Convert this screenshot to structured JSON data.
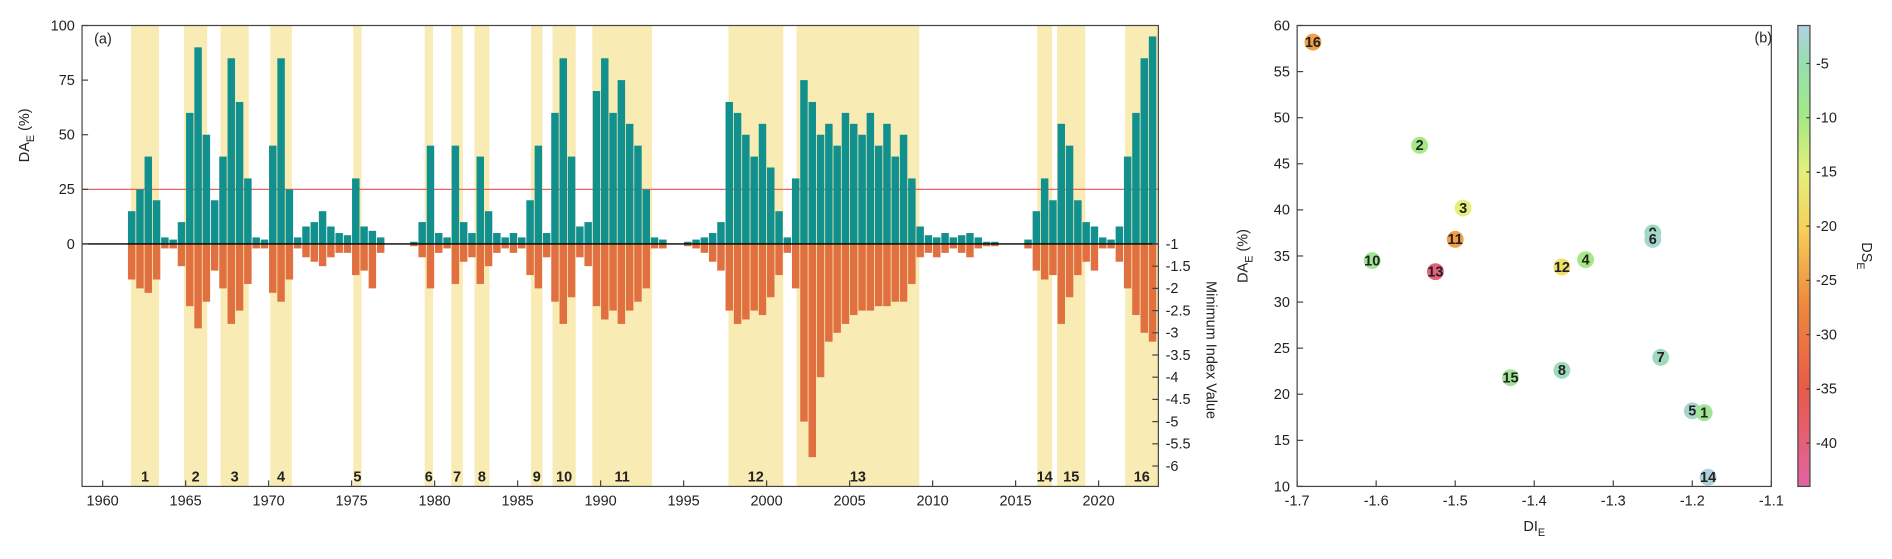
{
  "chart_data": [
    {
      "type": "bar",
      "panel": "(a)",
      "y_label": {
        "main": "DA",
        "sub": "E",
        "rest": " (%)"
      },
      "y2_label": "Minimum Index Value",
      "xlim": [
        1958.76,
        2023.6
      ],
      "xticks": [
        1960,
        1965,
        1970,
        1975,
        1980,
        1985,
        1990,
        1995,
        2000,
        2005,
        2010,
        2015,
        2020
      ],
      "ylim": [
        -111,
        100
      ],
      "yticks": [
        0,
        25,
        50,
        75,
        100
      ],
      "y2lim": [
        -6.46,
        3.92
      ],
      "y2ticks": [
        -1,
        -1.5,
        -2,
        -2.5,
        -3,
        -3.5,
        -4,
        -4.5,
        -5,
        -5.5,
        -6
      ],
      "reference_line": {
        "value": 25,
        "color": "#f06060"
      },
      "period_color": "#f8ebb4",
      "periods": [
        {
          "label": "1",
          "start": 1961.7,
          "end": 1963.4
        },
        {
          "label": "2",
          "start": 1964.9,
          "end": 1966.3
        },
        {
          "label": "3",
          "start": 1967.1,
          "end": 1968.8
        },
        {
          "label": "4",
          "start": 1970.1,
          "end": 1971.4
        },
        {
          "label": "5",
          "start": 1975.1,
          "end": 1975.6
        },
        {
          "label": "6",
          "start": 1979.4,
          "end": 1979.9
        },
        {
          "label": "7",
          "start": 1981.0,
          "end": 1981.7
        },
        {
          "label": "8",
          "start": 1982.4,
          "end": 1983.3
        },
        {
          "label": "9",
          "start": 1985.8,
          "end": 1986.5
        },
        {
          "label": "10",
          "start": 1987.1,
          "end": 1988.5
        },
        {
          "label": "11",
          "start": 1989.5,
          "end": 1993.1
        },
        {
          "label": "12",
          "start": 1997.7,
          "end": 2001.0
        },
        {
          "label": "13",
          "start": 2001.8,
          "end": 2009.2
        },
        {
          "label": "14",
          "start": 2016.3,
          "end": 2017.2
        },
        {
          "label": "15",
          "start": 2017.5,
          "end": 2019.2
        },
        {
          "label": "16",
          "start": 2021.6,
          "end": 2023.6
        }
      ],
      "x": [
        1961.75,
        1962.25,
        1962.75,
        1963.25,
        1963.75,
        1964.25,
        1964.75,
        1965.25,
        1965.75,
        1966.25,
        1966.75,
        1967.25,
        1967.75,
        1968.25,
        1968.75,
        1969.25,
        1969.75,
        1970.25,
        1970.75,
        1971.25,
        1971.75,
        1972.25,
        1972.75,
        1973.25,
        1973.75,
        1974.25,
        1974.75,
        1975.25,
        1975.75,
        1976.25,
        1976.75,
        1977.25,
        1977.75,
        1978.25,
        1978.75,
        1979.25,
        1979.75,
        1980.25,
        1980.75,
        1981.25,
        1981.75,
        1982.25,
        1982.75,
        1983.25,
        1983.75,
        1984.25,
        1984.75,
        1985.25,
        1985.75,
        1986.25,
        1986.75,
        1987.25,
        1987.75,
        1988.25,
        1988.75,
        1989.25,
        1989.75,
        1990.25,
        1990.75,
        1991.25,
        1991.75,
        1992.25,
        1992.75,
        1993.25,
        1993.75,
        1994.25,
        1994.75,
        1995.25,
        1995.75,
        1996.25,
        1996.75,
        1997.25,
        1997.75,
        1998.25,
        1998.75,
        1999.25,
        1999.75,
        2000.25,
        2000.75,
        2001.25,
        2001.75,
        2002.25,
        2002.75,
        2003.25,
        2003.75,
        2004.25,
        2004.75,
        2005.25,
        2005.75,
        2006.25,
        2006.75,
        2007.25,
        2007.75,
        2008.25,
        2008.75,
        2009.25,
        2009.75,
        2010.25,
        2010.75,
        2011.25,
        2011.75,
        2012.25,
        2012.75,
        2013.25,
        2013.75,
        2014.25,
        2014.75,
        2015.25,
        2015.75,
        2016.25,
        2016.75,
        2017.25,
        2017.75,
        2018.25,
        2018.75,
        2019.25,
        2019.75,
        2020.25,
        2020.75,
        2021.25,
        2021.75,
        2022.25,
        2022.75,
        2023.25
      ],
      "series": [
        {
          "color": "#12908e",
          "values": [
            15,
            25,
            40,
            20,
            3,
            2,
            10,
            60,
            90,
            50,
            20,
            40,
            85,
            65,
            30,
            3,
            2,
            45,
            85,
            25,
            3,
            8,
            10,
            15,
            8,
            5,
            4,
            30,
            8,
            6,
            3,
            0,
            0,
            0,
            1,
            10,
            45,
            5,
            3,
            45,
            10,
            5,
            40,
            15,
            5,
            3,
            5,
            3,
            20,
            45,
            5,
            60,
            85,
            40,
            8,
            10,
            70,
            85,
            60,
            75,
            55,
            45,
            25,
            3,
            2,
            0,
            0,
            1,
            2,
            3,
            5,
            10,
            65,
            60,
            50,
            40,
            55,
            35,
            15,
            3,
            30,
            75,
            65,
            50,
            55,
            45,
            60,
            55,
            50,
            60,
            45,
            55,
            40,
            50,
            30,
            8,
            4,
            3,
            5,
            3,
            4,
            5,
            3,
            1,
            1,
            0,
            0,
            0,
            2,
            15,
            30,
            20,
            55,
            45,
            20,
            10,
            8,
            3,
            2,
            8,
            40,
            60,
            85,
            95
          ]
        },
        {
          "color": "#e07040",
          "axis": "y2",
          "values": [
            -1.8,
            -2,
            -2.1,
            -1.8,
            -1.1,
            -1.1,
            -1.5,
            -2.4,
            -2.9,
            -2.3,
            -1.6,
            -2,
            -2.8,
            -2.5,
            -1.9,
            -1.1,
            -1.1,
            -2.1,
            -2.3,
            -1.8,
            -1.1,
            -1.3,
            -1.4,
            -1.5,
            -1.3,
            -1.2,
            -1.2,
            -1.7,
            -1.6,
            -2,
            -1.2,
            -1,
            -1,
            -1,
            -1.05,
            -1.3,
            -2,
            -1.2,
            -1.1,
            -1.9,
            -1.4,
            -1.3,
            -1.9,
            -1.5,
            -1.2,
            -1.1,
            -1.2,
            -1.1,
            -1.7,
            -2,
            -1.3,
            -2.3,
            -2.8,
            -2.2,
            -1.3,
            -1.5,
            -2.4,
            -2.7,
            -2.5,
            -2.8,
            -2.5,
            -2.3,
            -2,
            -1.1,
            -1.1,
            -1,
            -1,
            -1.05,
            -1.1,
            -1.2,
            -1.4,
            -1.6,
            -2.5,
            -2.8,
            -2.7,
            -2.5,
            -2.6,
            -2.2,
            -1.7,
            -1.2,
            -2,
            -5,
            -5.8,
            -4,
            -3.2,
            -3,
            -2.8,
            -2.6,
            -2.5,
            -2.5,
            -2.4,
            -2.4,
            -2.3,
            -2.3,
            -1.9,
            -1.3,
            -1.2,
            -1.3,
            -1.2,
            -1.1,
            -1.2,
            -1.3,
            -1.1,
            -1.05,
            -1.05,
            -1,
            -1,
            -1,
            -1.1,
            -1.6,
            -1.8,
            -1.7,
            -2.8,
            -2.2,
            -1.7,
            -1.4,
            -1.6,
            -1.1,
            -1.1,
            -1.4,
            -2,
            -2.6,
            -3,
            -3.2
          ]
        }
      ]
    },
    {
      "type": "scatter",
      "panel": "(b)",
      "x_label": {
        "main": "DI",
        "sub": "E"
      },
      "y_label": {
        "main": "DA",
        "sub": "E",
        "rest": " (%)"
      },
      "c_label": {
        "main": "DS",
        "sub": "E"
      },
      "xlim": [
        -1.7,
        -1.1
      ],
      "xticks": [
        -1.7,
        -1.6,
        -1.5,
        -1.4,
        -1.3,
        -1.2,
        -1.1
      ],
      "ylim": [
        10,
        60
      ],
      "yticks": [
        10,
        15,
        20,
        25,
        30,
        35,
        40,
        45,
        50,
        55,
        60
      ],
      "clim": [
        -44,
        -1.5
      ],
      "cticks": [
        -5,
        -10,
        -15,
        -20,
        -25,
        -30,
        -35,
        -40
      ],
      "colormap": [
        {
          "value": -44,
          "color": "#e264a4"
        },
        {
          "value": -35,
          "color": "#e85a48"
        },
        {
          "value": -27,
          "color": "#f08a3c"
        },
        {
          "value": -20,
          "color": "#f6d25a"
        },
        {
          "value": -15,
          "color": "#e4f07a"
        },
        {
          "value": -10,
          "color": "#a6e886"
        },
        {
          "value": -5,
          "color": "#96dfae"
        },
        {
          "value": -1.5,
          "color": "#b2cfe6"
        }
      ],
      "labels": [
        "16",
        "2",
        "3",
        "11",
        "10",
        "13",
        "12",
        "4",
        "9",
        "6",
        "7",
        "8",
        "15",
        "5",
        "1",
        "14"
      ],
      "x": [
        -1.68,
        -1.545,
        -1.49,
        -1.5,
        -1.605,
        -1.525,
        -1.365,
        -1.335,
        -1.25,
        -1.25,
        -1.24,
        -1.365,
        -1.43,
        -1.2,
        -1.185,
        -1.18
      ],
      "values": [
        58.2,
        47,
        40.2,
        36.8,
        34.5,
        33.3,
        33.8,
        34.6,
        37.5,
        36.8,
        24,
        22.6,
        21.8,
        18.2,
        18,
        11
      ],
      "c": [
        -25,
        -10,
        -15,
        -25,
        -8,
        -40,
        -18,
        -10,
        -4,
        -3,
        -4,
        -4,
        -8,
        -3,
        -8,
        -2
      ]
    }
  ]
}
